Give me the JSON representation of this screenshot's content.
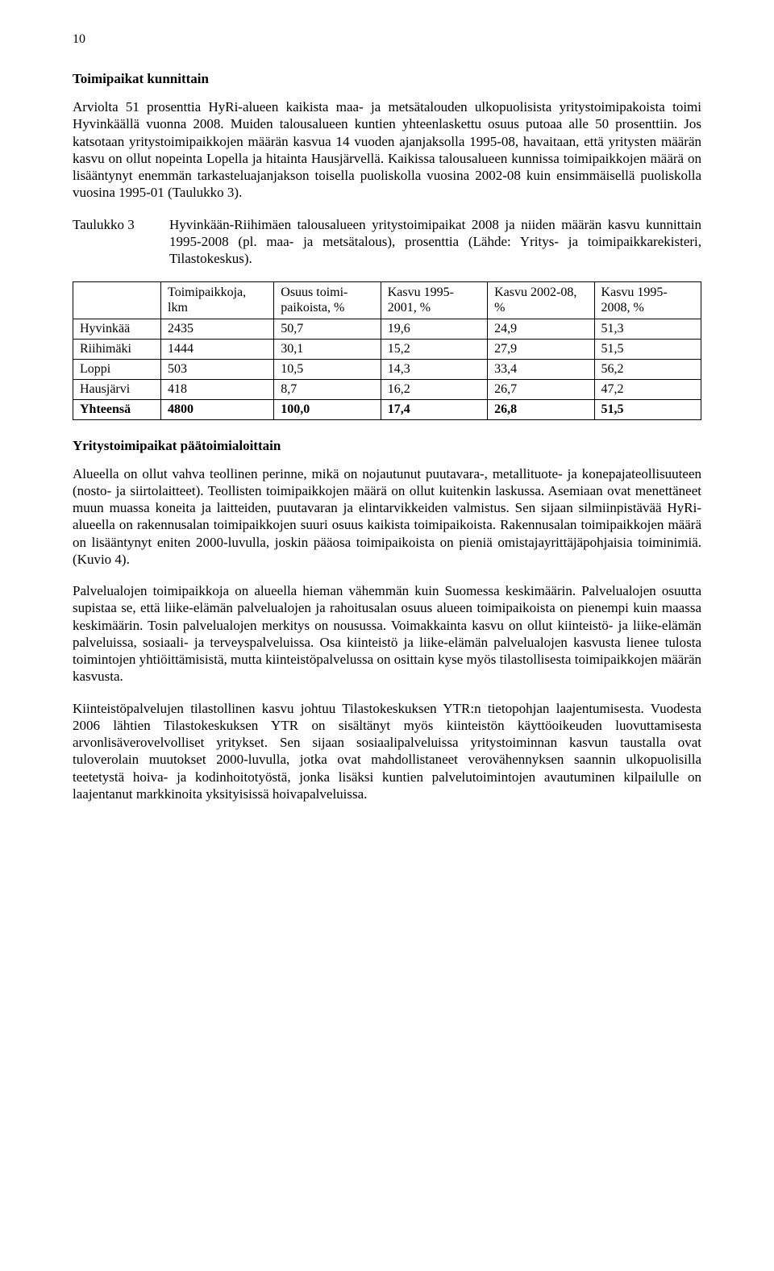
{
  "pageNumber": "10",
  "section1": {
    "title": "Toimipaikat kunnittain",
    "p1": "Arviolta 51 prosenttia HyRi-alueen kaikista maa- ja metsätalouden ulkopuolisista yritystoimipakoista toimi Hyvinkäällä vuonna 2008. Muiden talousalueen kuntien yhteenlaskettu osuus putoaa alle 50 prosenttiin. Jos katsotaan yritystoimipaikkojen määrän kasvua 14 vuoden ajanjaksolla 1995-08, havaitaan, että yritysten määrän kasvu on ollut nopeinta Lopella ja hitainta Hausjärvellä. Kaikissa talousalueen kunnissa toimipaikkojen määrä on lisääntynyt enemmän tarkasteluajanjakson toisella puoliskolla vuosina 2002-08 kuin ensimmäisellä puoliskolla vuosina 1995-01 (Taulukko 3)."
  },
  "taulukko3": {
    "label": "Taulukko 3",
    "caption": "Hyvinkään-Riihimäen talousalueen yritystoimipaikat 2008 ja niiden määrän kasvu kunnittain 1995-2008 (pl. maa- ja metsätalous), prosenttia (Lähde: Yritys- ja toimipaikkarekisteri, Tilastokeskus).",
    "columns": [
      "",
      "Toimipaikkoja, lkm",
      "Osuus toimi-paikoista, %",
      "Kasvu 1995-2001, %",
      "Kasvu 2002-08, %",
      "Kasvu 1995-2008, %"
    ],
    "rows": [
      [
        "Hyvinkää",
        "2435",
        "50,7",
        "19,6",
        "24,9",
        "51,3"
      ],
      [
        "Riihimäki",
        "1444",
        "30,1",
        "15,2",
        "27,9",
        "51,5"
      ],
      [
        "Loppi",
        "503",
        "10,5",
        "14,3",
        "33,4",
        "56,2"
      ],
      [
        "Hausjärvi",
        "418",
        "8,7",
        "16,2",
        "26,7",
        "47,2"
      ],
      [
        "Yhteensä",
        "4800",
        "100,0",
        "17,4",
        "26,8",
        "51,5"
      ]
    ]
  },
  "section2": {
    "title": "Yritystoimipaikat päätoimialoittain",
    "p1": "Alueella on ollut vahva teollinen perinne, mikä on nojautunut puutavara-, metallituote- ja konepajateollisuuteen (nosto- ja siirtolaitteet). Teollisten toimipaikkojen määrä on ollut kuitenkin laskussa. Asemiaan ovat menettäneet muun muassa koneita ja laitteiden, puutavaran ja elintarvikkeiden valmistus. Sen sijaan silmiinpistävää HyRi-alueella on rakennusalan toimipaikkojen suuri osuus kaikista toimipaikoista. Rakennusalan toimipaikkojen määrä on lisääntynyt eniten 2000-luvulla, joskin pääosa toimipaikoista on pieniä omistajayrittäjäpohjaisia toiminimiä. (Kuvio 4).",
    "p2": "Palvelualojen toimipaikkoja on alueella hieman vähemmän kuin Suomessa keskimäärin. Palvelualojen osuutta supistaa se, että liike-elämän palvelualojen ja rahoitusalan osuus alueen toimipaikoista on pienempi kuin maassa keskimäärin. Tosin palvelualojen merkitys on nousussa. Voimakkainta kasvu on ollut kiinteistö- ja liike-elämän palveluissa, sosiaali- ja terveyspalveluissa. Osa kiinteistö ja liike-elämän palvelualojen kasvusta lienee tulosta toimintojen yhtiöittämisistä, mutta kiinteistöpalvelussa on osittain kyse myös tilastollisesta toimipaikkojen määrän kasvusta.",
    "p3": "Kiinteistöpalvelujen tilastollinen kasvu johtuu Tilastokeskuksen YTR:n tietopohjan laajentumisesta. Vuodesta 2006 lähtien Tilastokeskuksen YTR on sisältänyt myös kiinteistön käyttöoikeuden luovuttamisesta arvonlisäverovelvolliset yritykset. Sen sijaan sosiaalipalveluissa yritystoiminnan kasvun taustalla ovat tuloverolain muutokset 2000-luvulla, jotka ovat mahdollistaneet verovähennyksen saannin ulkopuolisilla teetetystä hoiva- ja kodinhoitotyöstä, jonka lisäksi kuntien palvelutoimintojen avautuminen kilpailulle on laajentanut markkinoita yksityisissä hoivapalveluissa."
  }
}
